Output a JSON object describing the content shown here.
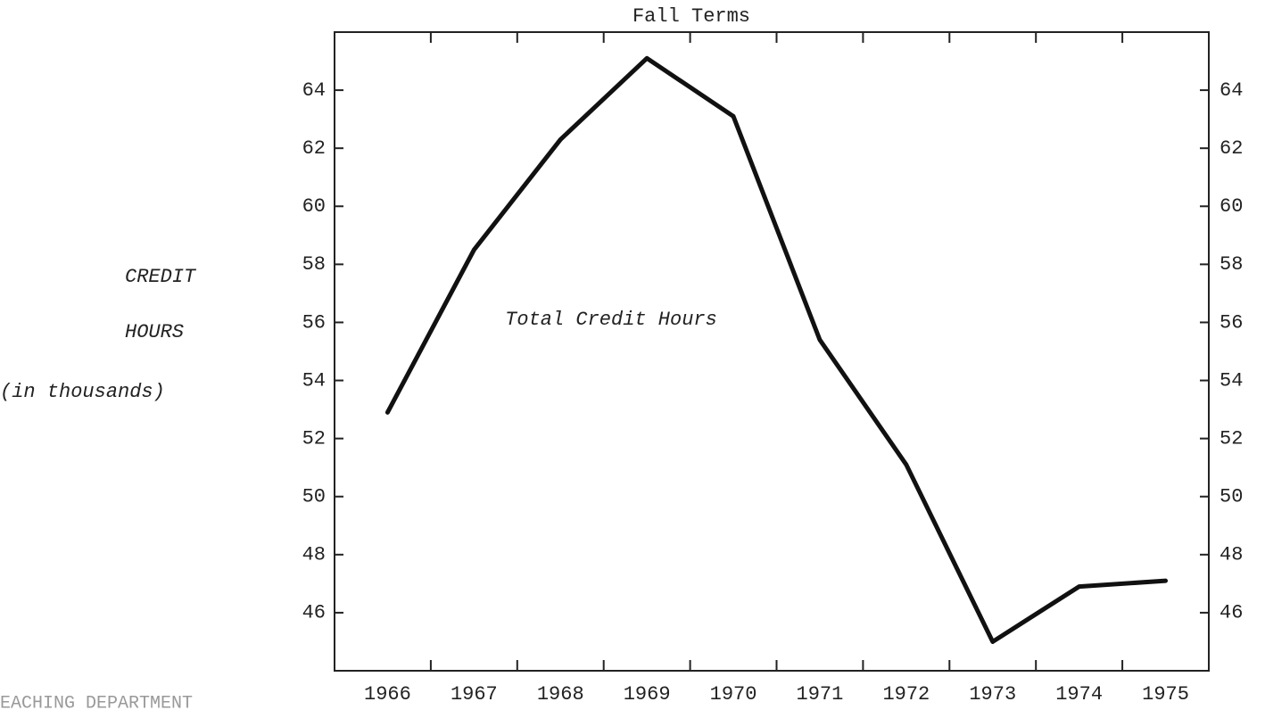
{
  "chart_data": {
    "type": "line",
    "title": "Fall Terms",
    "y_label": [
      "CREDIT",
      "HOURS",
      "(in thousands)"
    ],
    "annotation": "Total Credit Hours",
    "footer": "EACHING DEPARTMENT",
    "categories": [
      "1966",
      "1967",
      "1968",
      "1969",
      "1970",
      "1971",
      "1972",
      "1973",
      "1974",
      "1975"
    ],
    "series": [
      {
        "name": "Total Credit Hours",
        "color": "#111111",
        "values": [
          52.9,
          58.5,
          62.3,
          65.1,
          63.1,
          55.4,
          51.1,
          45.0,
          46.9,
          47.1
        ]
      }
    ],
    "ylim": [
      44,
      66
    ],
    "yticks": [
      46,
      48,
      50,
      52,
      54,
      56,
      58,
      60,
      62,
      64
    ],
    "grid": false
  }
}
